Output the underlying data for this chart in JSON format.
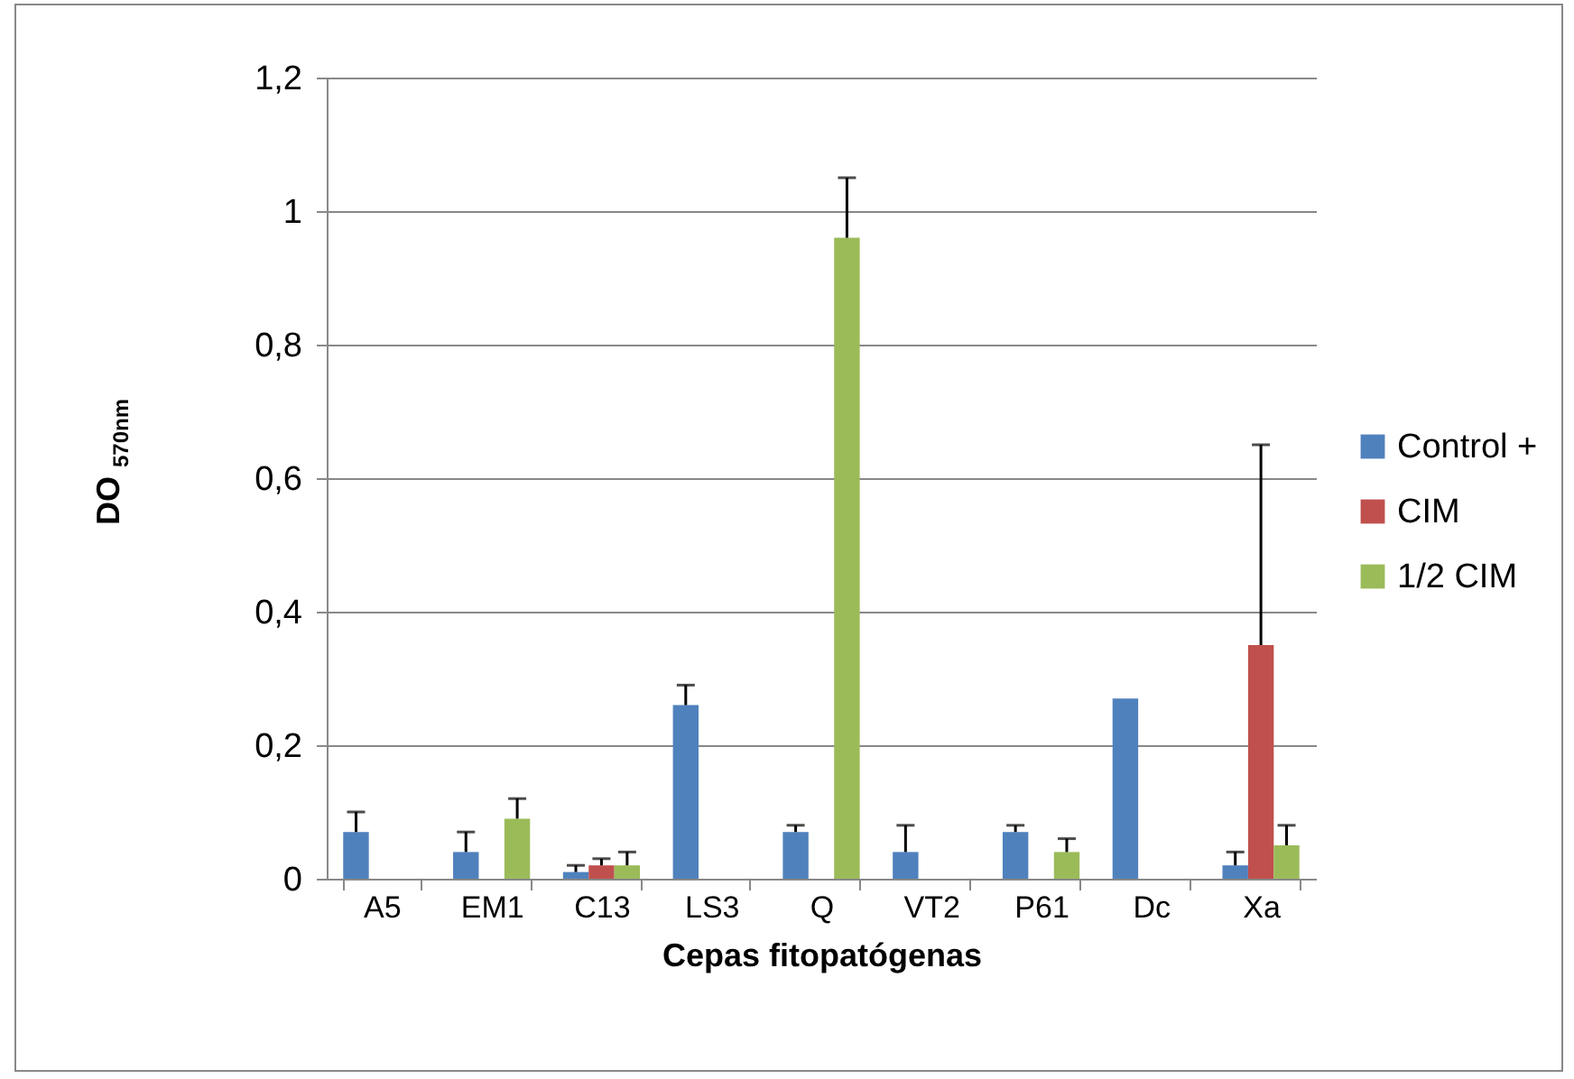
{
  "chart_data": {
    "type": "bar",
    "xlabel": "Cepas fitopatógenas",
    "ylabel": "DO $_{570nm}$",
    "categories": [
      "A5",
      "EM1",
      "C13",
      "LS3",
      "Q",
      "VT2",
      "P61",
      "Dc",
      "Xa"
    ],
    "series": [
      {
        "name": "Control +",
        "color": "#4f81bd",
        "values": [
          0.07,
          0.04,
          0.01,
          0.26,
          0.07,
          0.04,
          0.07,
          0.27,
          0.02
        ],
        "errors": [
          [
            0.07,
            0.1
          ],
          [
            0.04,
            0.07
          ],
          [
            0.01,
            0.02
          ],
          [
            0.26,
            0.29
          ],
          [
            0.07,
            0.08
          ],
          [
            0.04,
            0.08
          ],
          [
            0.07,
            0.08
          ],
          null,
          [
            0.02,
            0.04
          ]
        ]
      },
      {
        "name": "CIM",
        "color": "#c0504d",
        "values": [
          0,
          0,
          0.02,
          0,
          0,
          0,
          0,
          0,
          0.35
        ],
        "errors": [
          null,
          null,
          [
            0.02,
            0.03
          ],
          null,
          null,
          null,
          null,
          null,
          [
            0.35,
            0.65
          ]
        ]
      },
      {
        "name": "1/2 CIM",
        "color": "#9bbb59",
        "values": [
          0,
          0.09,
          0.02,
          0,
          0.96,
          0,
          0.04,
          0,
          0.05
        ],
        "errors": [
          null,
          [
            0.09,
            0.12
          ],
          [
            0.02,
            0.04
          ],
          null,
          [
            0.96,
            1.05
          ],
          null,
          [
            0.04,
            0.06
          ],
          null,
          [
            0.05,
            0.08
          ]
        ]
      }
    ],
    "ylim": [
      0,
      1.2
    ],
    "yticks": [
      0,
      {
        "value": 0.2,
        "label": "0,2"
      },
      {
        "value": 0.4,
        "label": "0,4"
      },
      {
        "value": 0.6,
        "label": "0,6"
      },
      {
        "value": 0.8,
        "label": "0,8"
      },
      1,
      {
        "value": 1.2,
        "label": "1,2"
      }
    ],
    "grid": "y",
    "legend": "right"
  }
}
